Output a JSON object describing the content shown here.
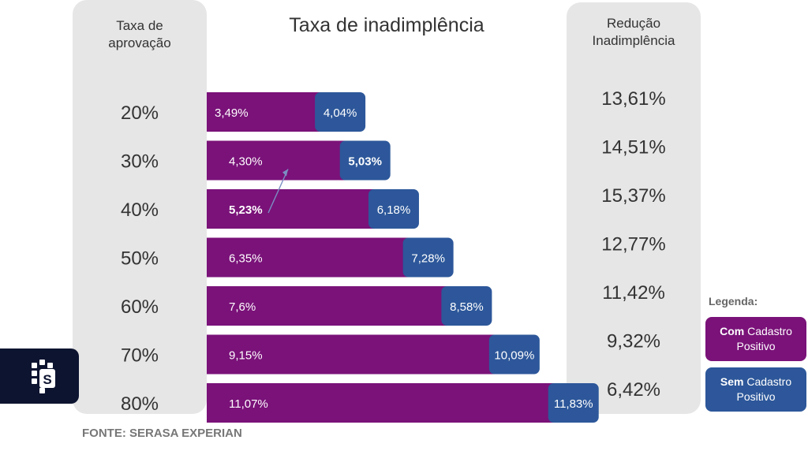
{
  "title": "Taxa de inadimplência",
  "left_header": "Taxa de\naprovação",
  "right_header": "Redução\nInadimplência",
  "legend": {
    "title": "Legenda:",
    "com": {
      "strong": "Com",
      "rest": "Cadastro Positivo"
    },
    "sem": {
      "strong": "Sem",
      "rest": "Cadastro Positivo"
    }
  },
  "source": "FONTE: SERASA EXPERIAN",
  "colors": {
    "com": "#7a1279",
    "sem": "#2d579a",
    "panel": "#e6e6e6",
    "logo_bg": "#0d1430"
  },
  "chart_data": {
    "type": "bar",
    "categories": [
      "20%",
      "30%",
      "40%",
      "50%",
      "60%",
      "70%",
      "80%"
    ],
    "series": [
      {
        "name": "Com Cadastro Positivo",
        "values": [
          3.49,
          4.3,
          5.23,
          6.35,
          7.6,
          9.15,
          11.07
        ],
        "labels": [
          "3,49%",
          "4,30%",
          "5,23%",
          "6,35%",
          "7,6%",
          "9,15%",
          "11,07%"
        ]
      },
      {
        "name": "Sem Cadastro Positivo",
        "values": [
          4.04,
          5.03,
          6.18,
          7.28,
          8.58,
          10.09,
          11.83
        ],
        "labels": [
          "4,04%",
          "5,03%",
          "6,18%",
          "7,28%",
          "8,58%",
          "10,09%",
          "11,83%"
        ]
      }
    ],
    "reducao": [
      "13,61%",
      "14,51%",
      "15,37%",
      "12,77%",
      "11,42%",
      "9,32%",
      "6,42%"
    ]
  }
}
